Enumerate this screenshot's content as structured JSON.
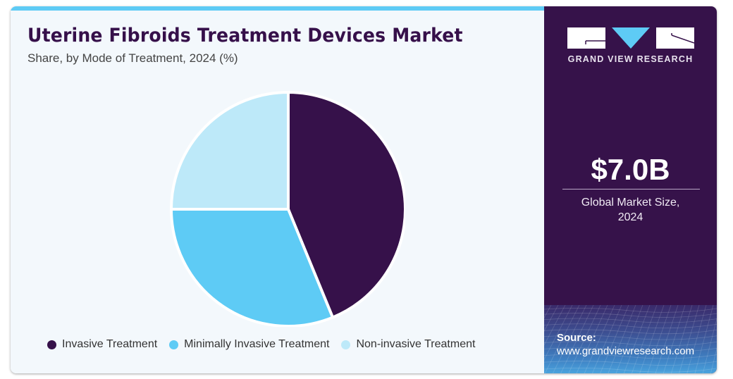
{
  "header": {
    "title": "Uterine Fibroids Treatment Devices Market",
    "subtitle": "Share, by Mode of Treatment, 2024 (%)"
  },
  "sidebar": {
    "brand": "GRAND VIEW RESEARCH",
    "market_value": "$7.0B",
    "market_label_line1": "Global Market Size,",
    "market_label_line2": "2024",
    "source_label": "Source:",
    "source_url": "www.grandviewresearch.com"
  },
  "colors": {
    "invasive": "#36114a",
    "minimally_invasive": "#5ecbf5",
    "non_invasive": "#bde9f9",
    "accent": "#5ecbf5"
  },
  "chart_data": {
    "type": "pie",
    "title": "Uterine Fibroids Treatment Devices Market",
    "subtitle": "Share, by Mode of Treatment, 2024 (%)",
    "categories": [
      "Invasive Treatment",
      "Minimally Invasive Treatment",
      "Non-invasive Treatment"
    ],
    "values": [
      43.8,
      31.2,
      25.0
    ],
    "unit": "%",
    "legend_position": "bottom",
    "start_angle": "12 o'clock, clockwise"
  }
}
